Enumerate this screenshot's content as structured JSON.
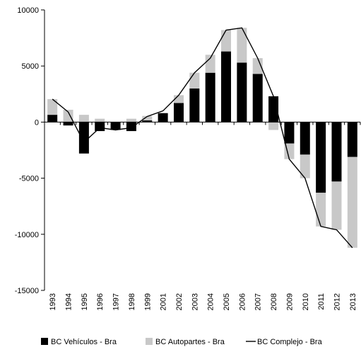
{
  "chart_data": {
    "type": "bar",
    "categories": [
      "1993",
      "1994",
      "1995",
      "1996",
      "1997",
      "1998",
      "1999",
      "2001",
      "2002",
      "2003",
      "2004",
      "2005",
      "2006",
      "2007",
      "2008",
      "2009",
      "2010",
      "2011",
      "2012",
      "2013"
    ],
    "series": [
      {
        "name": "BC Vehículos - Bra",
        "kind": "stacked-bar",
        "color": "#000000",
        "values": [
          650,
          -300,
          -2800,
          -800,
          -700,
          -800,
          150,
          800,
          1700,
          3000,
          4400,
          6300,
          5300,
          4300,
          2300,
          -1900,
          -2900,
          -6300,
          -5300,
          -3100
        ]
      },
      {
        "name": "BC Autopartes - Bra",
        "kind": "stacked-bar",
        "color": "#c8c8c8",
        "values": [
          1400,
          1100,
          650,
          300,
          0,
          300,
          400,
          0,
          700,
          1400,
          1600,
          1900,
          3100,
          1400,
          -700,
          -1400,
          -2100,
          -3000,
          -4300,
          -8100
        ]
      },
      {
        "name": "BC Complejo - Bra",
        "kind": "line",
        "color": "#000000",
        "values": [
          2050,
          900,
          -1800,
          -500,
          -700,
          -500,
          500,
          1000,
          2400,
          4400,
          5700,
          8200,
          8400,
          5700,
          2300,
          -3300,
          -5000,
          -9300,
          -9600,
          -11200
        ]
      }
    ],
    "ylim": [
      -15000,
      10000
    ],
    "yticks": [
      "10000",
      "5000",
      "0",
      "-5000",
      "-10000",
      "-15000"
    ],
    "ytick_values": [
      10000,
      5000,
      0,
      -5000,
      -10000,
      -15000
    ],
    "grid": false,
    "legend_position": "bottom"
  }
}
